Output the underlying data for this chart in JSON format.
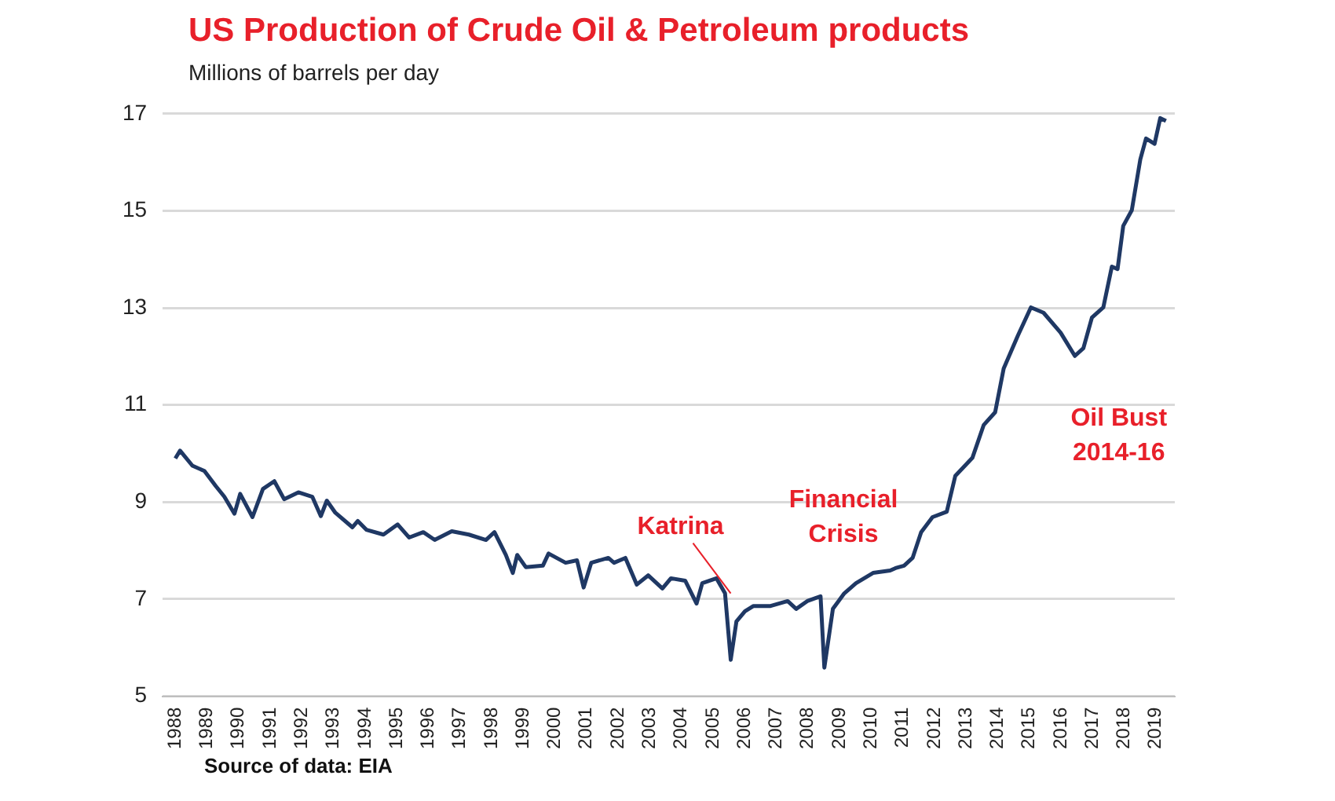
{
  "chart_data": {
    "type": "line",
    "title": "US Production  of Crude Oil & Petroleum products",
    "ylabel": "Millions of barrels per day",
    "x": [
      1988.0,
      1988.15,
      1988.54,
      1988.92,
      1989.28,
      1989.55,
      1989.87,
      1990.05,
      1990.44,
      1990.77,
      1991.13,
      1991.44,
      1991.89,
      1992.33,
      1992.6,
      1992.79,
      1993.06,
      1993.6,
      1993.77,
      1994.04,
      1994.58,
      1995.03,
      1995.39,
      1995.84,
      1996.2,
      1996.74,
      1997.28,
      1997.82,
      1998.09,
      1998.45,
      1998.67,
      1998.81,
      1999.08,
      1999.62,
      1999.8,
      2000.34,
      2000.7,
      2000.91,
      2001.15,
      2001.69,
      2001.87,
      2002.23,
      2002.59,
      2002.95,
      2003.4,
      2003.67,
      2004.12,
      2004.48,
      2004.66,
      2005.11,
      2005.38,
      2005.56,
      2005.74,
      2006.01,
      2006.28,
      2006.82,
      2007.36,
      2007.63,
      2007.98,
      2008.4,
      2008.52,
      2008.79,
      2009.15,
      2009.52,
      2010.06,
      2010.6,
      2010.77,
      2011.04,
      2011.31,
      2011.58,
      2011.94,
      2012.39,
      2012.66,
      2013.2,
      2013.56,
      2013.92,
      2014.19,
      2014.64,
      2015.05,
      2015.45,
      2015.99,
      2016.44,
      2016.71,
      2016.98,
      2017.34,
      2017.61,
      2017.79,
      2017.97,
      2018.24,
      2018.51,
      2018.69,
      2018.96,
      2019.14,
      2019.32
    ],
    "series": [
      {
        "color": "#1f3864",
        "values": [
          9.9,
          10.06,
          9.75,
          9.64,
          9.33,
          9.11,
          8.76,
          9.17,
          8.69,
          9.27,
          9.43,
          9.06,
          9.2,
          9.11,
          8.71,
          9.03,
          8.78,
          8.48,
          8.61,
          8.43,
          8.33,
          8.54,
          8.27,
          8.38,
          8.22,
          8.4,
          8.33,
          8.22,
          8.38,
          7.91,
          7.54,
          7.91,
          7.66,
          7.69,
          7.94,
          7.75,
          7.8,
          7.24,
          7.75,
          7.85,
          7.75,
          7.85,
          7.3,
          7.49,
          7.22,
          7.43,
          7.38,
          6.91,
          7.33,
          7.43,
          7.12,
          5.75,
          6.54,
          6.75,
          6.86,
          6.86,
          6.96,
          6.8,
          6.96,
          7.06,
          5.59,
          6.8,
          7.12,
          7.33,
          7.54,
          7.59,
          7.64,
          7.69,
          7.85,
          8.38,
          8.69,
          8.8,
          9.54,
          9.91,
          10.59,
          10.85,
          11.75,
          12.43,
          13.01,
          12.9,
          12.49,
          12.01,
          12.17,
          12.8,
          13.01,
          13.85,
          13.8,
          14.69,
          15.01,
          16.06,
          16.49,
          16.38,
          16.91,
          16.85
        ]
      }
    ],
    "xlim": [
      1987.6,
      2019.6
    ],
    "xticks": [
      1988,
      1989,
      1990,
      1991,
      1992,
      1993,
      1994,
      1995,
      1996,
      1997,
      1998,
      1999,
      2000,
      2001,
      2002,
      2003,
      2004,
      2005,
      2006,
      2007,
      2008,
      2009,
      2010,
      2011,
      2012,
      2013,
      2014,
      2015,
      2016,
      2017,
      2018,
      2019
    ],
    "ylim": [
      5,
      17
    ],
    "yticks": [
      5,
      7,
      9,
      11,
      13,
      15,
      17
    ],
    "grid": "y",
    "legend": false,
    "marker": "none",
    "line_style": "solid",
    "annotations": [
      {
        "text": "Katrina",
        "x": 2005.56,
        "y": 7.12
      },
      {
        "text": "Oil Bust\n2014-16",
        "x": 2016.44,
        "y": 12.01
      },
      "Financial\nCrisis",
      "Source of data: EIA"
    ]
  }
}
